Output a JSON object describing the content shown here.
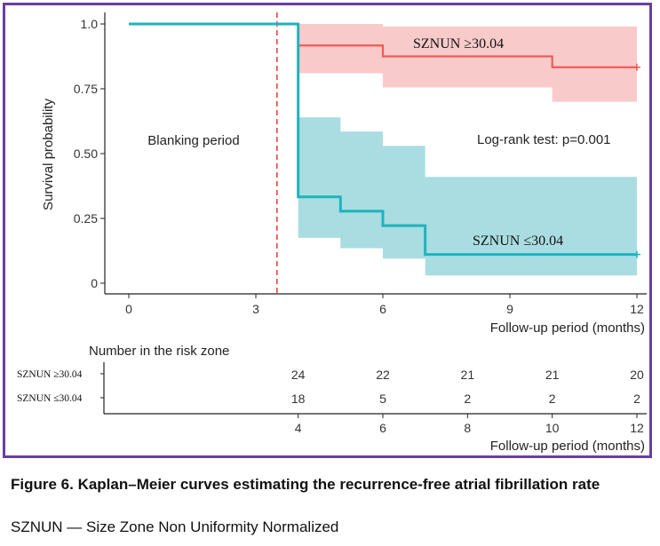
{
  "colors": {
    "high_line": "#ef5b57",
    "high_band": "#f9caca",
    "low_line": "#1fb3bd",
    "low_band": "#a9dde2",
    "blanking_line": "#e53935",
    "frame": "#6a3fa0"
  },
  "chart_data": {
    "type": "line",
    "subtype": "kaplan-meier survival curve",
    "ylabel": "Survival probability",
    "xlabel": "Follow-up period (months)",
    "xlim": [
      -1,
      12.2
    ],
    "ylim": [
      -0.02,
      1.0
    ],
    "xticks": [
      0,
      3,
      6,
      9,
      12
    ],
    "yticks": [
      {
        "value": 1.0,
        "label": "1.0"
      },
      {
        "value": 0.75,
        "label": "0.75"
      },
      {
        "value": 0.5,
        "label": "0.50"
      },
      {
        "value": 0.25,
        "label": "0.25"
      },
      {
        "value": 0,
        "label": "0"
      }
    ],
    "blanking_cutoff": 3.5,
    "annotations": {
      "blanking": "Blanking period",
      "logrank": "Log-rank test: p=0.001"
    },
    "series": [
      {
        "name": "SZNUN ≥30.04",
        "key": "high",
        "steps": [
          [
            0,
            1.0
          ],
          [
            4,
            0.917
          ],
          [
            6,
            0.875
          ],
          [
            10,
            0.833
          ],
          [
            12,
            0.833
          ]
        ],
        "ci_steps": [
          [
            4,
            0.81,
            1.0
          ],
          [
            6,
            0.755,
            0.99
          ],
          [
            10,
            0.7,
            0.99
          ],
          [
            12,
            0.7,
            0.99
          ]
        ],
        "censor_x": [
          12
        ]
      },
      {
        "name": "SZNUN ≤30.04",
        "key": "low",
        "steps": [
          [
            0,
            1.0
          ],
          [
            4,
            0.333
          ],
          [
            5,
            0.278
          ],
          [
            6,
            0.222
          ],
          [
            7,
            0.111
          ],
          [
            12,
            0.111
          ]
        ],
        "ci_steps": [
          [
            4,
            0.175,
            0.64
          ],
          [
            5,
            0.135,
            0.585
          ],
          [
            6,
            0.095,
            0.53
          ],
          [
            7,
            0.03,
            0.41
          ],
          [
            12,
            0.03,
            0.41
          ]
        ],
        "censor_x": [
          12
        ]
      }
    ],
    "risk_table": {
      "title": "Number in the risk zone",
      "xlabel": "Follow-up period (months)",
      "xticks": [
        4,
        6,
        8,
        10,
        12
      ],
      "rows": [
        {
          "label": "SZNUN ≥30.04",
          "counts": [
            24,
            22,
            21,
            21,
            20
          ]
        },
        {
          "label": "SZNUN ≤30.04",
          "counts": [
            18,
            5,
            2,
            2,
            2
          ]
        }
      ]
    }
  },
  "caption": {
    "title": "Figure 6. Kaplan–Meier curves estimating the recurrence-free atrial fibrillation rate",
    "note": "SZNUN — Size Zone Non Uniformity Normalized"
  }
}
